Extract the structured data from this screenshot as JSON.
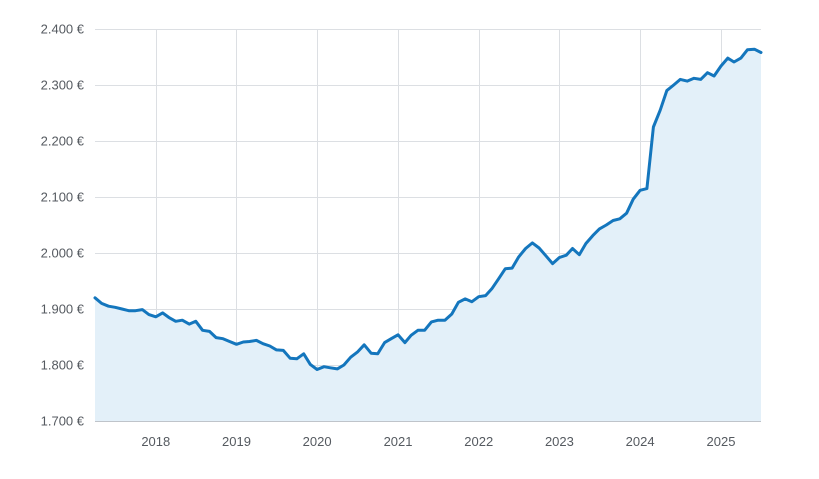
{
  "colors": {
    "line": "#1476bd",
    "area": "#e3f0f9",
    "grid": "#dcdfe3",
    "text": "#555a60"
  },
  "chart_data": {
    "type": "area",
    "title": "",
    "xlabel": "",
    "ylabel": "",
    "grid": true,
    "legend": "none",
    "ylim": [
      1700,
      2400
    ],
    "xlim": [
      "2017-04-01",
      "2025-07-01"
    ],
    "y_ticks": [
      1700,
      1800,
      1900,
      2000,
      2100,
      2200,
      2300,
      2400
    ],
    "y_tick_labels": [
      "1.700 €",
      "1.800 €",
      "1.900 €",
      "2.000 €",
      "2.100 €",
      "2.200 €",
      "2.300 €",
      "2.400 €"
    ],
    "x_ticks": [
      "2018-01-01",
      "2019-01-01",
      "2020-01-01",
      "2021-01-01",
      "2022-01-01",
      "2023-01-01",
      "2024-01-01",
      "2025-01-01"
    ],
    "x_tick_labels": [
      "2018",
      "2019",
      "2020",
      "2021",
      "2022",
      "2023",
      "2024",
      "2025"
    ],
    "series": [
      {
        "x": [
          "2017-04",
          "2017-05",
          "2017-06",
          "2017-07",
          "2017-08",
          "2017-09",
          "2017-10",
          "2017-11",
          "2017-12",
          "2018-01",
          "2018-02",
          "2018-03",
          "2018-04",
          "2018-05",
          "2018-06",
          "2018-07",
          "2018-08",
          "2018-09",
          "2018-10",
          "2018-11",
          "2018-12",
          "2019-01",
          "2019-02",
          "2019-03",
          "2019-04",
          "2019-05",
          "2019-06",
          "2019-07",
          "2019-08",
          "2019-09",
          "2019-10",
          "2019-11",
          "2019-12",
          "2020-01",
          "2020-02",
          "2020-03",
          "2020-04",
          "2020-05",
          "2020-06",
          "2020-07",
          "2020-08",
          "2020-09",
          "2020-10",
          "2020-11",
          "2020-12",
          "2021-01",
          "2021-02",
          "2021-03",
          "2021-04",
          "2021-05",
          "2021-06",
          "2021-07",
          "2021-08",
          "2021-09",
          "2021-10",
          "2021-11",
          "2021-12",
          "2022-01",
          "2022-02",
          "2022-03",
          "2022-04",
          "2022-05",
          "2022-06",
          "2022-07",
          "2022-08",
          "2022-09",
          "2022-10",
          "2022-11",
          "2022-12",
          "2023-01",
          "2023-02",
          "2023-03",
          "2023-04",
          "2023-05",
          "2023-06",
          "2023-07",
          "2023-08",
          "2023-09",
          "2023-10",
          "2023-11",
          "2023-12",
          "2024-01",
          "2024-02",
          "2024-03",
          "2024-04",
          "2024-05",
          "2024-06",
          "2024-07",
          "2024-08",
          "2024-09",
          "2024-10",
          "2024-11",
          "2024-12",
          "2025-01",
          "2025-02",
          "2025-03",
          "2025-04",
          "2025-05",
          "2025-06",
          "2025-07"
        ],
        "values": [
          1920,
          1910,
          1905,
          1903,
          1900,
          1897,
          1897,
          1899,
          1890,
          1886,
          1893,
          1885,
          1878,
          1880,
          1873,
          1878,
          1862,
          1860,
          1849,
          1847,
          1842,
          1837,
          1841,
          1842,
          1844,
          1838,
          1834,
          1827,
          1826,
          1812,
          1811,
          1820,
          1801,
          1792,
          1797,
          1795,
          1793,
          1800,
          1814,
          1823,
          1836,
          1821,
          1820,
          1840,
          1847,
          1854,
          1840,
          1853,
          1862,
          1862,
          1877,
          1880,
          1880,
          1891,
          1912,
          1918,
          1913,
          1922,
          1924,
          1936,
          1954,
          1972,
          1973,
          1993,
          2008,
          2018,
          2009,
          1995,
          1981,
          1992,
          1996,
          2008,
          1997,
          2017,
          2031,
          2043,
          2050,
          2058,
          2061,
          2071,
          2096,
          2112,
          2115,
          2225,
          2255,
          2290,
          2300,
          2310,
          2307,
          2312,
          2310,
          2322,
          2316,
          2334,
          2348,
          2341,
          2348,
          2363,
          2364,
          2358
        ]
      }
    ]
  }
}
